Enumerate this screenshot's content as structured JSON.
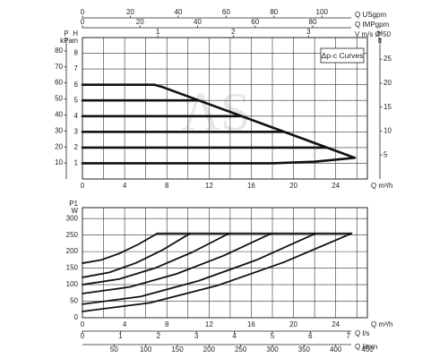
{
  "chart_data": [
    {
      "type": "line",
      "x_label": "Q m³/h",
      "y_label": "H",
      "y_unit": "m",
      "legend_text": "Δp-c Curves",
      "watermark": "AS",
      "xlim": [
        0,
        27
      ],
      "xticks": [
        0,
        4,
        8,
        12,
        16,
        20,
        24
      ],
      "xminorticks": [
        2,
        6,
        10,
        14,
        18,
        22,
        26
      ],
      "ylim": [
        0,
        9
      ],
      "yticks": [
        1,
        2,
        3,
        4,
        5,
        6,
        7,
        8
      ],
      "color": "#111",
      "axes": [
        {
          "label": "Q USgpm",
          "lim": [
            0,
            119
          ],
          "ticks": [
            0,
            20,
            40,
            60,
            80,
            100
          ]
        },
        {
          "label": "Q IMPgpm",
          "lim": [
            0,
            99
          ],
          "ticks": [
            0,
            20,
            40,
            60,
            80
          ]
        },
        {
          "label": "V m/s Ø 50",
          "lim": [
            0,
            3.78
          ],
          "ticks": [
            1,
            2,
            3
          ]
        },
        {
          "label": "P",
          "unit": "kPa",
          "lim": [
            0,
            88.3
          ],
          "ticks": [
            10,
            20,
            30,
            40,
            50,
            60,
            70,
            80
          ]
        },
        {
          "label": "H",
          "unit": "ft",
          "lim": [
            0,
            29.5
          ],
          "ticks": [
            5,
            10,
            15,
            20,
            25
          ]
        }
      ],
      "series": [
        {
          "x": [
            0,
            6.8,
            7.6,
            25.8
          ],
          "values": [
            6,
            6,
            5.85,
            1.35
          ]
        },
        {
          "x": [
            0,
            11.0
          ],
          "values": [
            5,
            5
          ]
        },
        {
          "x": [
            0,
            15.1
          ],
          "values": [
            4,
            4
          ]
        },
        {
          "x": [
            0,
            19.1
          ],
          "values": [
            3,
            3
          ]
        },
        {
          "x": [
            0,
            23.2
          ],
          "values": [
            2,
            2
          ]
        },
        {
          "x": [
            0,
            18,
            22,
            25.8
          ],
          "values": [
            1,
            1,
            1.1,
            1.35
          ]
        }
      ]
    },
    {
      "type": "line",
      "x_label": "Q m³/h",
      "y_label": "P1",
      "y_unit": "W",
      "xlim": [
        0,
        27
      ],
      "xticks": [
        0,
        4,
        8,
        12,
        16,
        20,
        24
      ],
      "xminorticks": [
        2,
        6,
        10,
        14,
        18,
        22,
        26
      ],
      "ylim": [
        0,
        333
      ],
      "yticks": [
        0,
        50,
        100,
        150,
        200,
        250,
        300
      ],
      "color": "#111",
      "axes": [
        {
          "label": "Q l/s",
          "lim": [
            0,
            7.5
          ],
          "ticks": [
            0,
            1,
            2,
            3,
            4,
            5,
            6,
            7
          ]
        },
        {
          "label": "Q l/min",
          "lim": [
            0,
            450
          ],
          "ticks": [
            50,
            100,
            150,
            200,
            250,
            300,
            350,
            400,
            450
          ]
        }
      ],
      "series": [
        {
          "x": [
            0,
            1.8,
            3.55,
            5.3,
            7.1
          ],
          "values": [
            165,
            175,
            195,
            222,
            255
          ]
        },
        {
          "x": [
            0,
            2.55,
            5.1,
            7.65,
            10.2
          ],
          "values": [
            122,
            137,
            166,
            206,
            255
          ]
        },
        {
          "x": [
            0,
            3.5,
            6.95,
            10.4,
            13.9
          ],
          "values": [
            100,
            117,
            151,
            198,
            255
          ]
        },
        {
          "x": [
            0,
            4.5,
            8.95,
            13.4,
            17.9
          ],
          "values": [
            73,
            93,
            133,
            188,
            255
          ]
        },
        {
          "x": [
            0,
            5.5,
            11.05,
            16.6,
            22.1
          ],
          "values": [
            41,
            64,
            112,
            176,
            255
          ]
        },
        {
          "x": [
            0,
            6.4,
            12.75,
            19.1,
            25.5
          ],
          "values": [
            19,
            45,
            97,
            168,
            255
          ]
        },
        {
          "x": [
            7.1,
            25.5
          ],
          "values": [
            255,
            255
          ]
        }
      ]
    }
  ]
}
